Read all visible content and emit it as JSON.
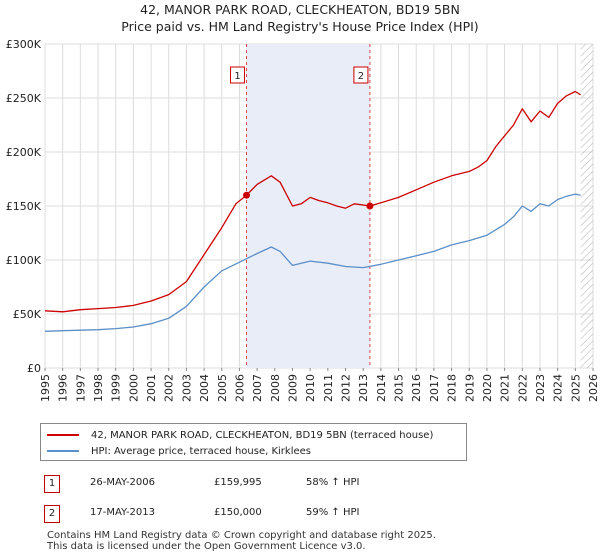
{
  "title_line1": "42, MANOR PARK ROAD, CLECKHEATON, BD19 5BN",
  "title_line2": "Price paid vs. HM Land Registry's House Price Index (HPI)",
  "chart_data": {
    "type": "line",
    "title": "42, MANOR PARK ROAD, CLECKHEATON, BD19 5BN — Price paid vs. HM Land Registry's House Price Index (HPI)",
    "xlim": [
      1995,
      2026
    ],
    "ylim": [
      0,
      300000
    ],
    "x_ticks": [
      "1995",
      "1996",
      "1997",
      "1998",
      "1999",
      "2000",
      "2001",
      "2002",
      "2003",
      "2004",
      "2005",
      "2006",
      "2007",
      "2008",
      "2009",
      "2010",
      "2011",
      "2012",
      "2013",
      "2014",
      "2015",
      "2016",
      "2017",
      "2018",
      "2019",
      "2020",
      "2021",
      "2022",
      "2023",
      "2024",
      "2025",
      "2026"
    ],
    "y_ticks": [
      {
        "value": 0,
        "label": "£0"
      },
      {
        "value": 50000,
        "label": "£50K"
      },
      {
        "value": 100000,
        "label": "£100K"
      },
      {
        "value": 150000,
        "label": "£150K"
      },
      {
        "value": 200000,
        "label": "£200K"
      },
      {
        "value": 250000,
        "label": "£250K"
      },
      {
        "value": 300000,
        "label": "£300K"
      }
    ],
    "shaded_region": [
      2006.4,
      2013.38
    ],
    "future_hatch_from": 2025.3,
    "series": [
      {
        "name": "42, MANOR PARK ROAD, CLECKHEATON, BD19 5BN (terraced house)",
        "color": "#cc0000",
        "points": [
          [
            1995,
            53000
          ],
          [
            1996,
            52000
          ],
          [
            1997,
            54000
          ],
          [
            1998,
            55000
          ],
          [
            1999,
            56000
          ],
          [
            2000,
            58000
          ],
          [
            2001,
            62000
          ],
          [
            2002,
            68000
          ],
          [
            2003,
            80000
          ],
          [
            2004,
            105000
          ],
          [
            2005,
            130000
          ],
          [
            2005.8,
            152000
          ],
          [
            2006.4,
            159995
          ],
          [
            2007,
            170000
          ],
          [
            2007.8,
            178000
          ],
          [
            2008.3,
            172000
          ],
          [
            2009,
            150000
          ],
          [
            2009.5,
            152000
          ],
          [
            2010,
            158000
          ],
          [
            2010.5,
            155000
          ],
          [
            2011,
            153000
          ],
          [
            2011.5,
            150000
          ],
          [
            2012,
            148000
          ],
          [
            2012.5,
            152000
          ],
          [
            2013.38,
            150000
          ],
          [
            2014,
            153000
          ],
          [
            2015,
            158000
          ],
          [
            2016,
            165000
          ],
          [
            2017,
            172000
          ],
          [
            2018,
            178000
          ],
          [
            2019,
            182000
          ],
          [
            2019.5,
            186000
          ],
          [
            2020,
            192000
          ],
          [
            2020.5,
            205000
          ],
          [
            2021,
            215000
          ],
          [
            2021.5,
            225000
          ],
          [
            2022,
            240000
          ],
          [
            2022.5,
            228000
          ],
          [
            2023,
            238000
          ],
          [
            2023.5,
            232000
          ],
          [
            2024,
            245000
          ],
          [
            2024.5,
            252000
          ],
          [
            2025,
            256000
          ],
          [
            2025.3,
            253000
          ]
        ]
      },
      {
        "name": "HPI: Average price, terraced house, Kirklees",
        "color": "#5b8fc7",
        "points": [
          [
            1995,
            34000
          ],
          [
            1996,
            34500
          ],
          [
            1997,
            35000
          ],
          [
            1998,
            35500
          ],
          [
            1999,
            36500
          ],
          [
            2000,
            38000
          ],
          [
            2001,
            41000
          ],
          [
            2002,
            46000
          ],
          [
            2003,
            57000
          ],
          [
            2004,
            75000
          ],
          [
            2005,
            90000
          ],
          [
            2006,
            98000
          ],
          [
            2007,
            106000
          ],
          [
            2007.8,
            112000
          ],
          [
            2008.3,
            108000
          ],
          [
            2009,
            95000
          ],
          [
            2009.5,
            97000
          ],
          [
            2010,
            99000
          ],
          [
            2011,
            97000
          ],
          [
            2012,
            94000
          ],
          [
            2013,
            93000
          ],
          [
            2014,
            96000
          ],
          [
            2015,
            100000
          ],
          [
            2016,
            104000
          ],
          [
            2017,
            108000
          ],
          [
            2018,
            114000
          ],
          [
            2019,
            118000
          ],
          [
            2020,
            123000
          ],
          [
            2021,
            133000
          ],
          [
            2021.5,
            140000
          ],
          [
            2022,
            150000
          ],
          [
            2022.5,
            145000
          ],
          [
            2023,
            152000
          ],
          [
            2023.5,
            150000
          ],
          [
            2024,
            156000
          ],
          [
            2024.5,
            159000
          ],
          [
            2025,
            161000
          ],
          [
            2025.3,
            160000
          ]
        ]
      }
    ],
    "events": [
      {
        "label": "1",
        "x": 2006.4,
        "price": 159995
      },
      {
        "label": "2",
        "x": 2013.38,
        "price": 150000
      }
    ]
  },
  "legend": {
    "property": "42, MANOR PARK ROAD, CLECKHEATON, BD19 5BN (terraced house)",
    "hpi": "HPI: Average price, terraced house, Kirklees"
  },
  "events_table": [
    {
      "label": "1",
      "date": "26-MAY-2006",
      "price": "£159,995",
      "hpi": "58% ↑ HPI"
    },
    {
      "label": "2",
      "date": "17-MAY-2013",
      "price": "£150,000",
      "hpi": "59% ↑ HPI"
    }
  ],
  "footer": {
    "line1": "Contains HM Land Registry data © Crown copyright and database right 2025.",
    "line2": "This data is licensed under the Open Government Licence v3.0."
  }
}
